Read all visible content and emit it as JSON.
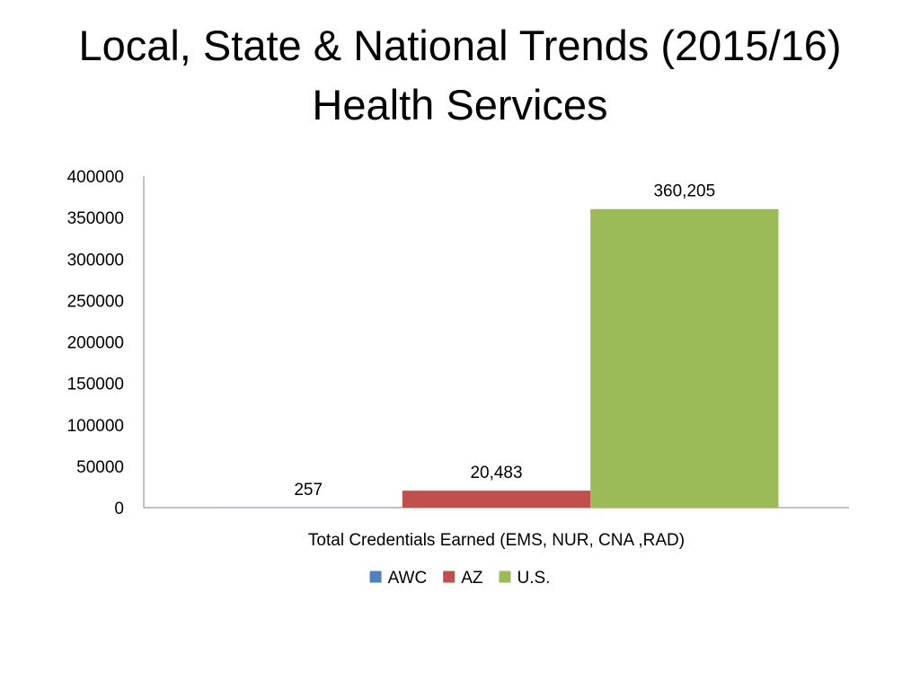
{
  "title": {
    "line1": "Local, State & National Trends (2015/16)",
    "line2": "Health Services"
  },
  "chart_data": {
    "type": "bar",
    "categories": [
      "Total Credentials Earned (EMS, NUR, CNA ,RAD)"
    ],
    "series": [
      {
        "name": "AWC",
        "values": [
          257
        ],
        "label": "257",
        "color": "#4F81BD"
      },
      {
        "name": "AZ",
        "values": [
          20483
        ],
        "label": "20,483",
        "color": "#C0504D"
      },
      {
        "name": "U.S.",
        "values": [
          360205
        ],
        "label": "360,205",
        "color": "#9BBB59"
      }
    ],
    "ylim": [
      0,
      400000
    ],
    "yticks": [
      0,
      50000,
      100000,
      150000,
      200000,
      250000,
      300000,
      350000,
      400000
    ],
    "ytick_labels": [
      "0",
      "50000",
      "100000",
      "150000",
      "200000",
      "250000",
      "300000",
      "350000",
      "400000"
    ],
    "xlabel": "",
    "ylabel": "",
    "grid": false,
    "legend_position": "bottom"
  }
}
